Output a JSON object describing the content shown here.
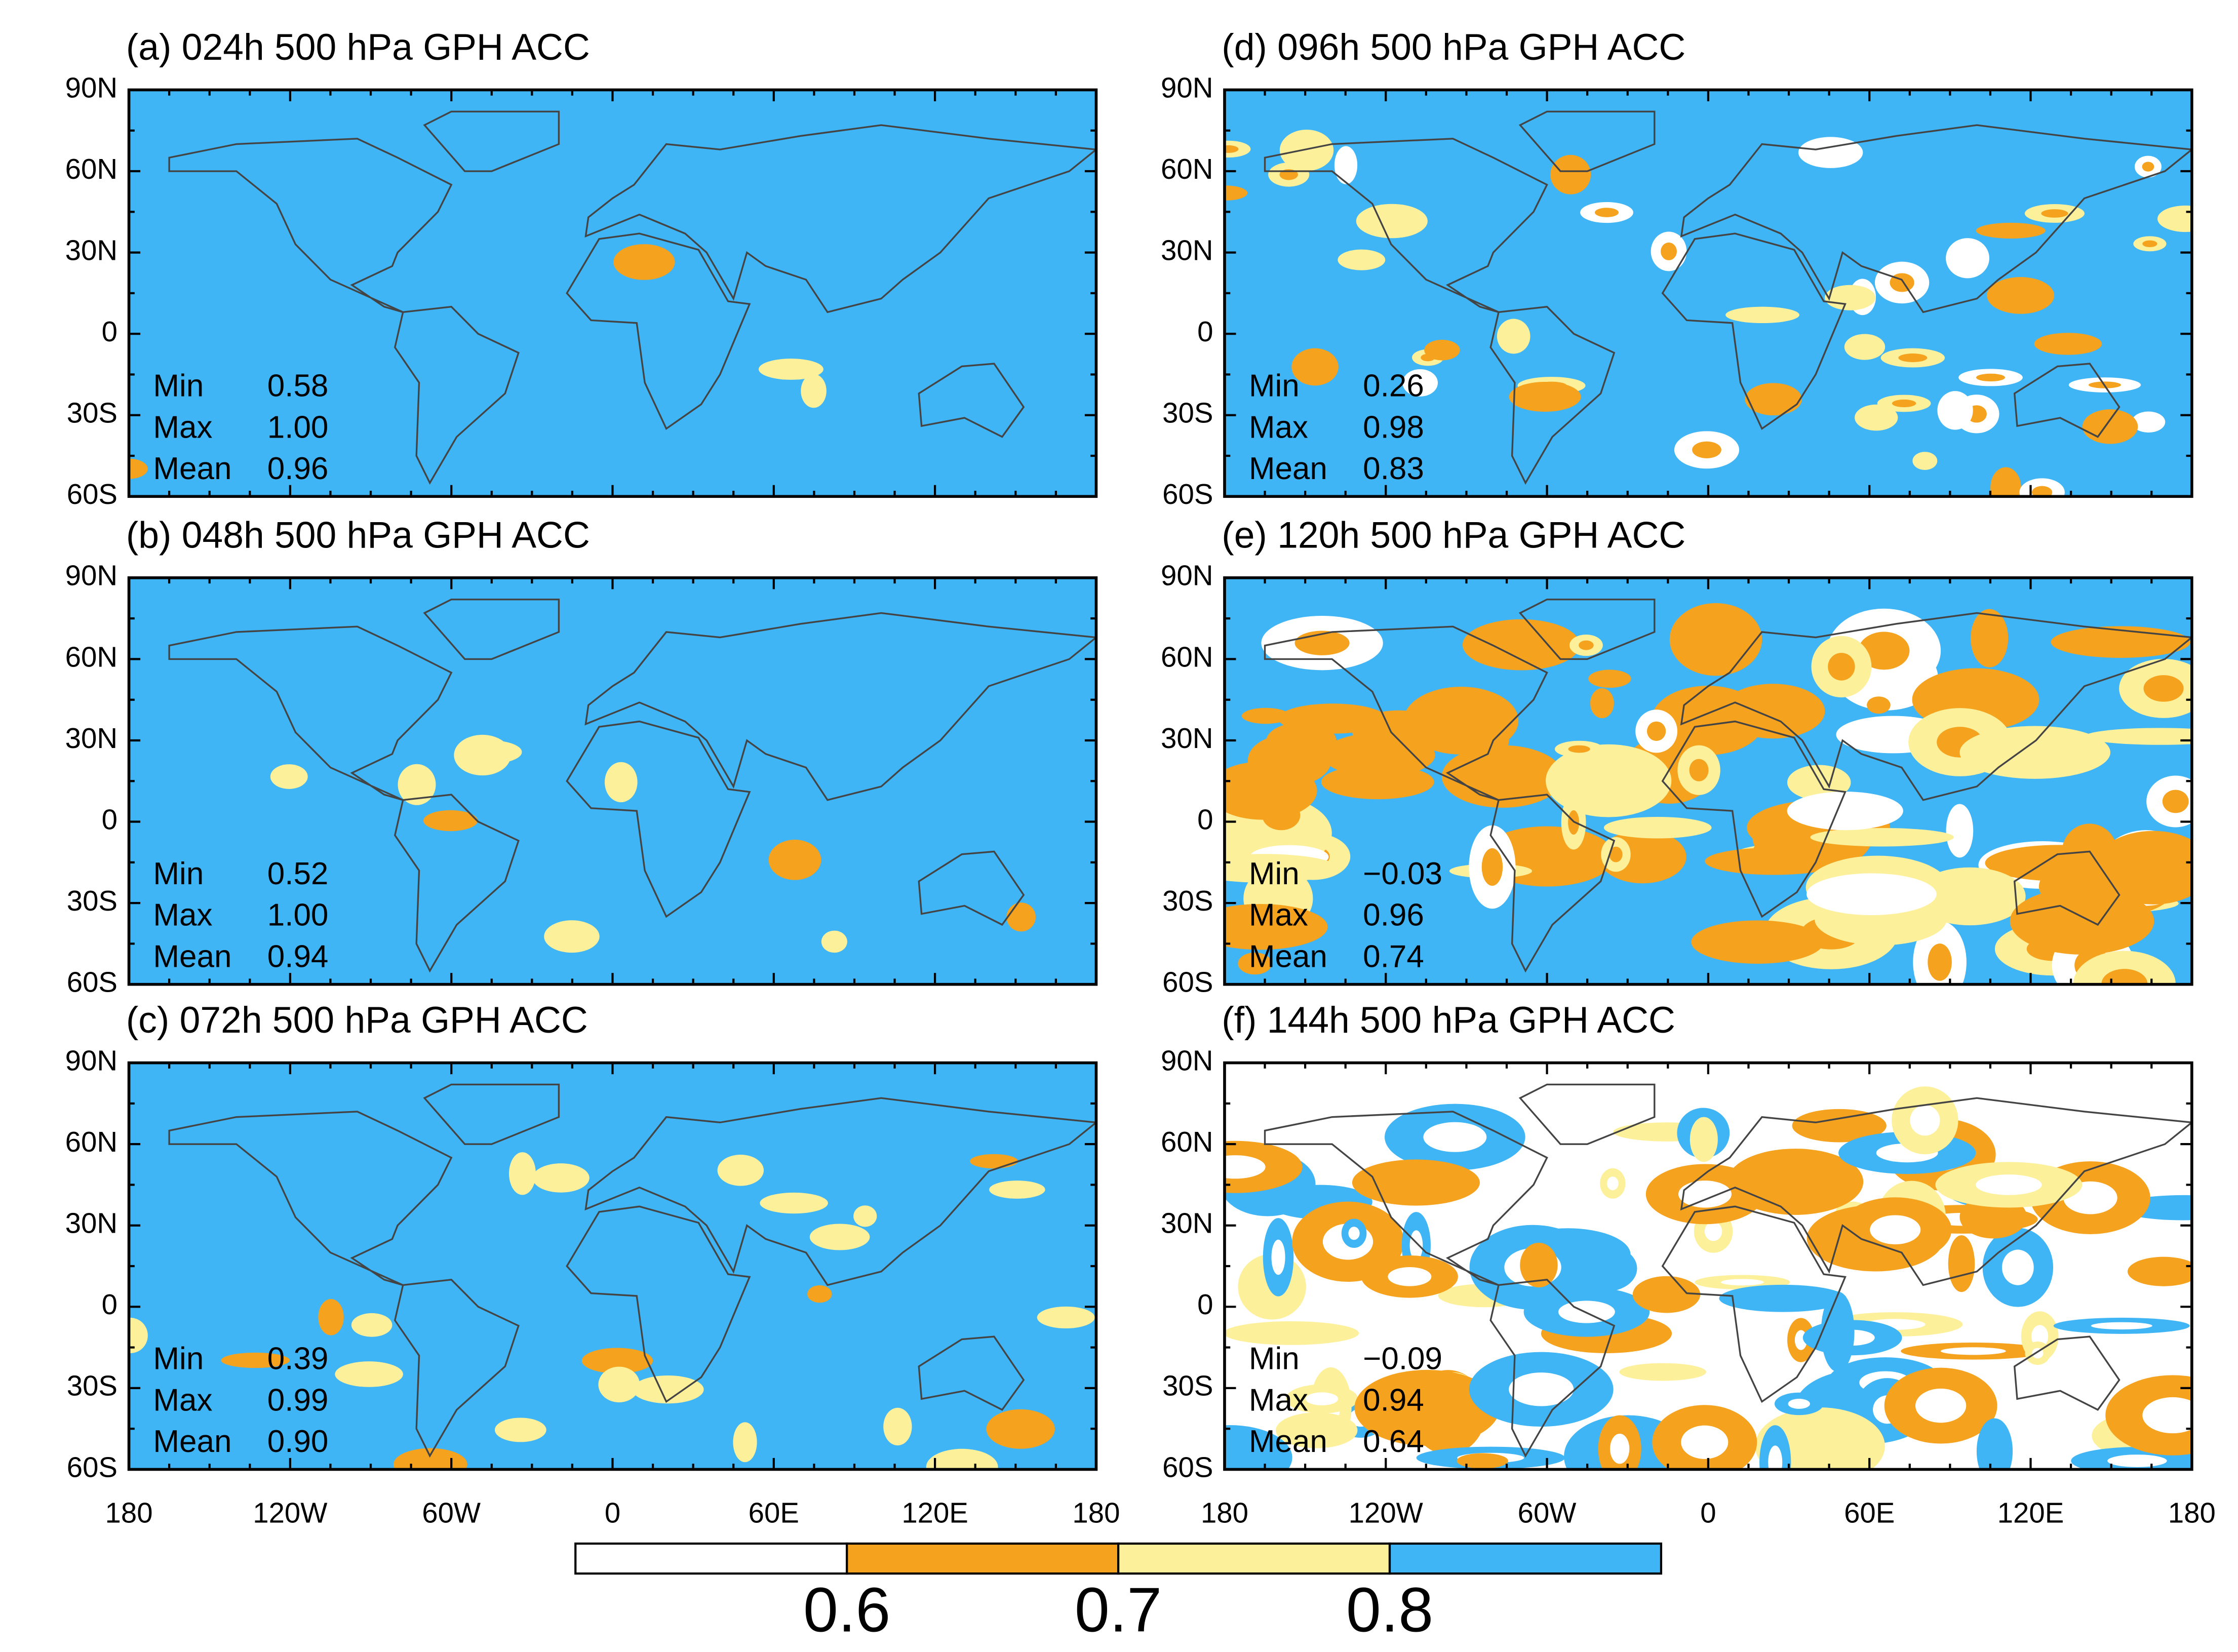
{
  "panels": [
    {
      "title": "(a) 024h 500 hPa GPH ACC",
      "stats": [
        {
          "label": "Min",
          "value": "0.58"
        },
        {
          "label": "Max",
          "value": "1.00"
        },
        {
          "label": "Mean",
          "value": "0.96"
        }
      ]
    },
    {
      "title": "(b) 048h 500 hPa GPH ACC",
      "stats": [
        {
          "label": "Min",
          "value": "0.52"
        },
        {
          "label": "Max",
          "value": "1.00"
        },
        {
          "label": "Mean",
          "value": "0.94"
        }
      ]
    },
    {
      "title": "(c) 072h 500 hPa GPH ACC",
      "stats": [
        {
          "label": "Min",
          "value": "0.39"
        },
        {
          "label": "Max",
          "value": "0.99"
        },
        {
          "label": "Mean",
          "value": "0.90"
        }
      ]
    },
    {
      "title": "(d) 096h 500 hPa GPH ACC",
      "stats": [
        {
          "label": "Min",
          "value": "0.26"
        },
        {
          "label": "Max",
          "value": "0.98"
        },
        {
          "label": "Mean",
          "value": "0.83"
        }
      ]
    },
    {
      "title": "(e) 120h 500 hPa GPH ACC",
      "stats": [
        {
          "label": "Min",
          "value": "−0.03"
        },
        {
          "label": "Max",
          "value": "0.96"
        },
        {
          "label": "Mean",
          "value": "0.74"
        }
      ]
    },
    {
      "title": "(f) 144h 500 hPa GPH ACC",
      "stats": [
        {
          "label": "Min",
          "value": "−0.09"
        },
        {
          "label": "Max",
          "value": "0.94"
        },
        {
          "label": "Mean",
          "value": "0.64"
        }
      ]
    }
  ],
  "lat_ticks": [
    "90N",
    "60N",
    "30N",
    "0",
    "30S",
    "60S"
  ],
  "lon_ticks": [
    "180",
    "120W",
    "60W",
    "0",
    "60E",
    "120E",
    "180"
  ],
  "colorbar": {
    "colors": [
      "#ffffff",
      "#f5a21e",
      "#fdf09b",
      "#3fb5f5"
    ],
    "labels": [
      "0.6",
      "0.7",
      "0.8"
    ]
  }
}
